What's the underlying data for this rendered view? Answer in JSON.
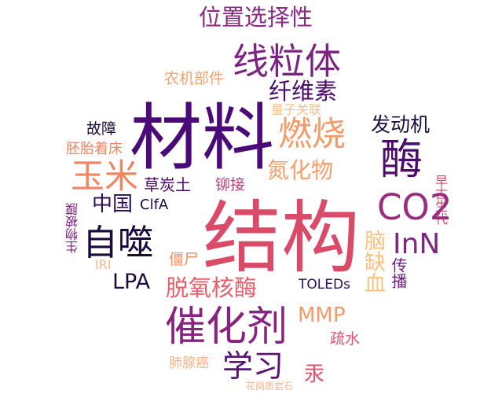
{
  "words": [
    {
      "text": "位置选择性",
      "color": "#8b2a82"
    },
    {
      "text": "线粒体",
      "color": "#7c2382"
    },
    {
      "text": "农机部件",
      "color": "#f2a46e"
    },
    {
      "text": "纤维素",
      "color": "#4b0c6b"
    },
    {
      "text": "量子关联",
      "color": "#f7c27e"
    },
    {
      "text": "材料",
      "color": "#4a0a77"
    },
    {
      "text": "燃烧",
      "color": "#f59a66"
    },
    {
      "text": "发动机",
      "color": "#1b0c41"
    },
    {
      "text": "故障",
      "color": "#1a0b3c"
    },
    {
      "text": "胚胎着床",
      "color": "#f08465"
    },
    {
      "text": "酶",
      "color": "#4b0c6b"
    },
    {
      "text": "玉米",
      "color": "#f28460"
    },
    {
      "text": "氮化物",
      "color": "#f79d6a"
    },
    {
      "text": "草炭土",
      "color": "#4a0c6b"
    },
    {
      "text": "铆接",
      "color": "#c43c75"
    },
    {
      "text": "早古生代",
      "color": "#d8456c"
    },
    {
      "text": "中国",
      "color": "#2b0b57"
    },
    {
      "text": "ClfA",
      "color": "#1b0c41"
    },
    {
      "text": "CO2",
      "color": "#9a2c80"
    },
    {
      "text": "生物被膜",
      "color": "#7a2382"
    },
    {
      "text": "自噬",
      "color": "#1a0b3c"
    },
    {
      "text": "结构",
      "color": "#d94b68"
    },
    {
      "text": "脑缺血",
      "color": "#f7c27e"
    },
    {
      "text": "InN",
      "color": "#7f2582"
    },
    {
      "text": "僵尸",
      "color": "#f28d5f"
    },
    {
      "text": "传播",
      "color": "#6b1d80"
    },
    {
      "text": "IRI",
      "color": "#f6b891"
    },
    {
      "text": "LPA",
      "color": "#1b0c41"
    },
    {
      "text": "脱氧核酶",
      "color": "#e85e6b"
    },
    {
      "text": "TOLEDs",
      "color": "#2f0f5a"
    },
    {
      "text": "MMP",
      "color": "#f59a66"
    },
    {
      "text": "催化剂",
      "color": "#86247f"
    },
    {
      "text": "疏水",
      "color": "#e0506c"
    },
    {
      "text": "肺腺癌",
      "color": "#f7b48a"
    },
    {
      "text": "学习",
      "color": "#5a1475"
    },
    {
      "text": "汞",
      "color": "#e0506c"
    },
    {
      "text": "花岗质岩石",
      "color": "#f7b48a"
    }
  ]
}
